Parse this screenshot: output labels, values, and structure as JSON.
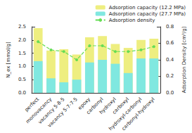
{
  "chart_data": {
    "type": "bar",
    "categories": [
      "perfect",
      "monovacancy",
      "vacancy 5-8-5",
      "vacancy 5-7-7-5",
      "epoxy",
      "carbonyl",
      "hydroxyl",
      "carboxyl",
      "hydroxyl-carbonyl",
      "carbonyl-hydroxyl"
    ],
    "series": [
      {
        "name": "Adsorption capacity (12.2 MPa)",
        "type": "bar",
        "color": "#eeee80",
        "values": [
          2.45,
          1.6,
          1.65,
          1.45,
          2.1,
          2.15,
          1.85,
          1.7,
          2.0,
          2.05
        ]
      },
      {
        "name": "Adsorption capacity (27.7 MPa)",
        "type": "bar",
        "color": "#80e8e0",
        "values": [
          1.2,
          0.55,
          0.4,
          0.5,
          1.15,
          1.25,
          1.1,
          0.75,
          1.3,
          1.3
        ]
      },
      {
        "name": "Adsorption density",
        "type": "line",
        "axis": "y2",
        "color": "#66dd55",
        "marker": "circle",
        "line_style": "dashed",
        "values": [
          0.62,
          0.52,
          0.5,
          0.4,
          0.57,
          0.57,
          0.5,
          0.5,
          0.52,
          0.56
        ]
      }
    ],
    "y_label": "N_ex [mmol/g]",
    "y2_label": "Adsorption Density [cm³/g]",
    "ylim": [
      0,
      2.5
    ],
    "yticks": [
      {
        "value": 0,
        "label": "0.0"
      },
      {
        "value": 0.5,
        "label": "0.5"
      },
      {
        "value": 1,
        "label": "1.0"
      },
      {
        "value": 1.5,
        "label": "1.5"
      },
      {
        "value": 2,
        "label": "2.0"
      },
      {
        "value": 2.5,
        "label": "2.5"
      }
    ],
    "y2lim": [
      0,
      0.8
    ],
    "y2ticks": [
      {
        "value": 0,
        "label": "0.0"
      },
      {
        "value": 0.2,
        "label": "0.2"
      },
      {
        "value": 0.4,
        "label": "0.4"
      },
      {
        "value": 0.6,
        "label": "0.6"
      },
      {
        "value": 0.8,
        "label": "0.8"
      }
    ],
    "grid": false,
    "legend": "top-right"
  }
}
